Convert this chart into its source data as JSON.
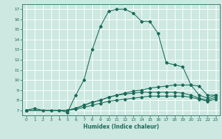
{
  "title": "",
  "xlabel": "Humidex (Indice chaleur)",
  "ylabel": "",
  "bg_color": "#cce8e0",
  "grid_color": "#ffffff",
  "line_color": "#1a6b5a",
  "xlim": [
    -0.5,
    23.5
  ],
  "ylim": [
    6.5,
    17.5
  ],
  "xticks": [
    0,
    1,
    2,
    3,
    4,
    5,
    6,
    7,
    8,
    9,
    10,
    11,
    12,
    13,
    14,
    15,
    16,
    17,
    18,
    19,
    20,
    21,
    22,
    23
  ],
  "yticks": [
    7,
    8,
    9,
    10,
    11,
    12,
    13,
    14,
    15,
    16,
    17
  ],
  "curve1_x": [
    0,
    1,
    2,
    3,
    4,
    5,
    6,
    7,
    8,
    9,
    10,
    11,
    12,
    13,
    14,
    15,
    16,
    17,
    18,
    19,
    20,
    21,
    22,
    23
  ],
  "curve1_y": [
    7.0,
    7.2,
    7.0,
    7.0,
    7.0,
    6.8,
    8.5,
    10.0,
    13.0,
    15.3,
    16.8,
    17.0,
    17.0,
    16.6,
    15.8,
    15.8,
    14.6,
    11.7,
    11.5,
    11.3,
    9.5,
    8.5,
    8.2,
    8.5
  ],
  "curve2_x": [
    0,
    5,
    6,
    7,
    8,
    9,
    10,
    11,
    12,
    13,
    14,
    15,
    16,
    17,
    18,
    19,
    20,
    21,
    22,
    23
  ],
  "curve2_y": [
    7.0,
    7.0,
    7.2,
    7.5,
    7.8,
    8.0,
    8.3,
    8.5,
    8.7,
    8.9,
    9.0,
    9.2,
    9.3,
    9.4,
    9.5,
    9.5,
    9.5,
    9.4,
    8.5,
    8.5
  ],
  "curve3_x": [
    0,
    5,
    6,
    7,
    8,
    9,
    10,
    11,
    12,
    13,
    14,
    15,
    16,
    17,
    18,
    19,
    20,
    21,
    22,
    23
  ],
  "curve3_y": [
    7.0,
    7.0,
    7.2,
    7.5,
    7.8,
    8.0,
    8.3,
    8.5,
    8.6,
    8.7,
    8.8,
    8.8,
    8.8,
    8.8,
    8.8,
    8.7,
    8.5,
    8.2,
    8.0,
    8.3
  ],
  "curve4_x": [
    0,
    5,
    6,
    7,
    8,
    9,
    10,
    11,
    12,
    13,
    14,
    15,
    16,
    17,
    18,
    19,
    20,
    21,
    22,
    23
  ],
  "curve4_y": [
    7.0,
    7.0,
    7.1,
    7.3,
    7.5,
    7.7,
    7.9,
    8.0,
    8.1,
    8.2,
    8.3,
    8.4,
    8.4,
    8.4,
    8.4,
    8.4,
    8.3,
    8.1,
    7.9,
    8.1
  ]
}
